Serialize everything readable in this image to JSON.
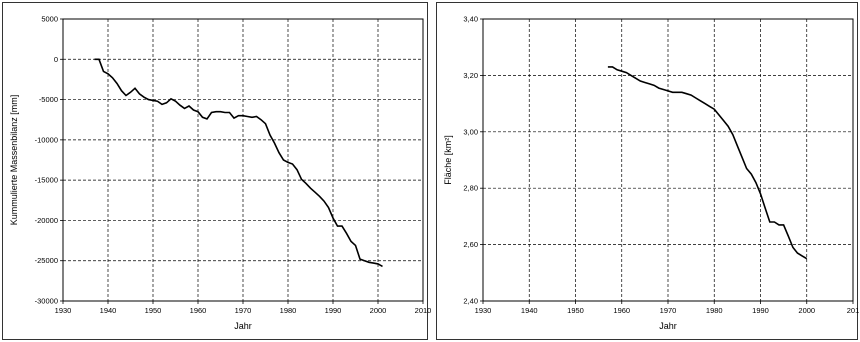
{
  "chart_data": [
    {
      "type": "line",
      "title": "",
      "xlabel": "Jahr",
      "ylabel": "Kummulierte Massenbilanz [mm]",
      "xlim": [
        1930,
        2010
      ],
      "ylim": [
        -30000,
        5000
      ],
      "xticks": [
        "1930",
        "1940",
        "1950",
        "1960",
        "1970",
        "1980",
        "1990",
        "2000",
        "2010"
      ],
      "yticks": [
        "5000",
        "0",
        "-5000",
        "-10000",
        "-15000",
        "-20000",
        "-25000",
        "-30000"
      ],
      "grid": true,
      "line_color": "#000000",
      "x": [
        1937,
        1938,
        1939,
        1940,
        1941,
        1942,
        1943,
        1944,
        1945,
        1946,
        1947,
        1948,
        1949,
        1950,
        1951,
        1952,
        1953,
        1954,
        1955,
        1956,
        1957,
        1958,
        1959,
        1960,
        1961,
        1962,
        1963,
        1964,
        1965,
        1966,
        1967,
        1968,
        1969,
        1970,
        1971,
        1972,
        1973,
        1974,
        1975,
        1976,
        1977,
        1978,
        1979,
        1980,
        1981,
        1982,
        1983,
        1984,
        1985,
        1986,
        1987,
        1988,
        1989,
        1990,
        1991,
        1992,
        1993,
        1994,
        1995,
        1996,
        1997,
        1998,
        1999,
        2000,
        2001
      ],
      "y": [
        0,
        0,
        -1500,
        -1800,
        -2300,
        -3000,
        -3900,
        -4500,
        -4100,
        -3600,
        -4300,
        -4700,
        -5000,
        -5100,
        -5200,
        -5600,
        -5400,
        -4900,
        -5200,
        -5700,
        -6100,
        -5800,
        -6300,
        -6500,
        -7200,
        -7400,
        -6600,
        -6500,
        -6500,
        -6600,
        -6600,
        -7300,
        -7000,
        -7000,
        -7100,
        -7200,
        -7100,
        -7500,
        -8000,
        -9400,
        -10400,
        -11600,
        -12500,
        -12800,
        -13000,
        -13700,
        -14900,
        -15400,
        -16000,
        -16500,
        -17000,
        -17600,
        -18400,
        -19700,
        -20700,
        -20700,
        -21600,
        -22600,
        -23100,
        -24800,
        -25000,
        -25200,
        -25300,
        -25400,
        -25700
      ]
    },
    {
      "type": "line",
      "title": "",
      "xlabel": "Jahr",
      "ylabel": "Fläche [km²]",
      "xlim": [
        1930,
        2010
      ],
      "ylim": [
        2.4,
        3.4
      ],
      "xticks": [
        "1930",
        "1940",
        "1950",
        "1960",
        "1970",
        "1980",
        "1990",
        "2000",
        "201"
      ],
      "yticks": [
        "3,40",
        "3,20",
        "3,00",
        "2,80",
        "2,60",
        "2,40"
      ],
      "grid": true,
      "line_color": "#000000",
      "x": [
        1957,
        1958,
        1959,
        1960,
        1961,
        1962,
        1963,
        1964,
        1965,
        1966,
        1967,
        1968,
        1969,
        1970,
        1971,
        1972,
        1973,
        1974,
        1975,
        1976,
        1977,
        1978,
        1979,
        1980,
        1981,
        1982,
        1983,
        1984,
        1985,
        1986,
        1987,
        1988,
        1989,
        1990,
        1991,
        1992,
        1993,
        1994,
        1995,
        1996,
        1997,
        1998,
        1999,
        2000
      ],
      "y": [
        3.23,
        3.23,
        3.22,
        3.215,
        3.21,
        3.2,
        3.19,
        3.18,
        3.175,
        3.17,
        3.165,
        3.155,
        3.15,
        3.145,
        3.14,
        3.14,
        3.14,
        3.135,
        3.13,
        3.12,
        3.11,
        3.1,
        3.09,
        3.08,
        3.06,
        3.04,
        3.02,
        2.99,
        2.95,
        2.91,
        2.87,
        2.85,
        2.82,
        2.78,
        2.73,
        2.68,
        2.68,
        2.67,
        2.67,
        2.63,
        2.59,
        2.57,
        2.56,
        2.55
      ]
    }
  ]
}
